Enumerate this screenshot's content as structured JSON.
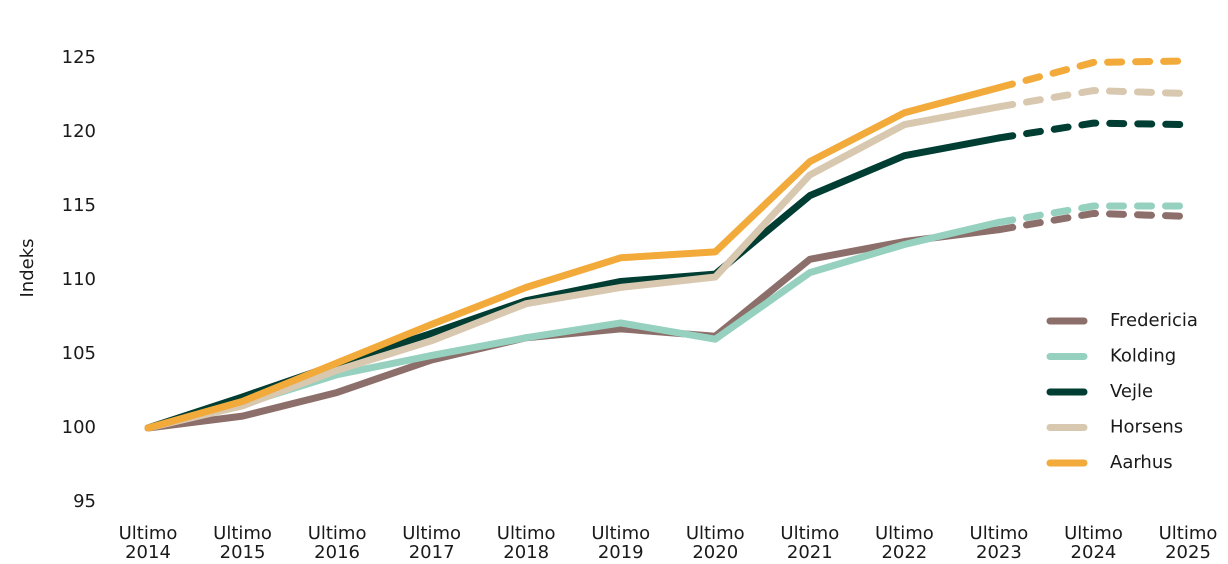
{
  "chart_data": {
    "type": "line",
    "y_label": "Indeks",
    "categories": [
      "Ultimo 2014",
      "Ultimo 2015",
      "Ultimo 2016",
      "Ultimo 2017",
      "Ultimo 2018",
      "Ultimo 2019",
      "Ultimo 2020",
      "Ultimo 2021",
      "Ultimo 2022",
      "Ultimo 2023",
      "Ultimo 2024",
      "Ultimo 2025"
    ],
    "series": [
      {
        "name": "Fredericia",
        "color": "#8c6e6a",
        "values": [
          100,
          100.8,
          102.4,
          104.6,
          106.1,
          106.7,
          106.2,
          111.4,
          112.6,
          113.4,
          114.5,
          114.3
        ]
      },
      {
        "name": "Kolding",
        "color": "#96d1bf",
        "values": [
          100,
          101.6,
          103.6,
          104.9,
          106.1,
          107.1,
          106.0,
          110.5,
          112.4,
          113.9,
          115.0,
          115.0
        ]
      },
      {
        "name": "Vejle",
        "color": "#003d32",
        "values": [
          100,
          102.1,
          104.3,
          106.4,
          108.6,
          109.9,
          110.4,
          115.7,
          118.4,
          119.6,
          120.6,
          120.5
        ]
      },
      {
        "name": "Horsens",
        "color": "#d9c8b0",
        "values": [
          100,
          101.5,
          103.9,
          105.9,
          108.4,
          109.5,
          110.2,
          117.1,
          120.5,
          121.7,
          122.8,
          122.6
        ]
      },
      {
        "name": "Aarhus",
        "color": "#f2aa3a",
        "values": [
          100,
          101.8,
          104.4,
          107.0,
          109.5,
          111.5,
          111.9,
          118.0,
          121.3,
          123.0,
          124.7,
          124.8
        ]
      }
    ],
    "dashed_from": 9,
    "ylim": [
      94,
      126
    ],
    "yticks": [
      95,
      100,
      105,
      110,
      115,
      120,
      125
    ],
    "grid": false,
    "legend": "right"
  }
}
